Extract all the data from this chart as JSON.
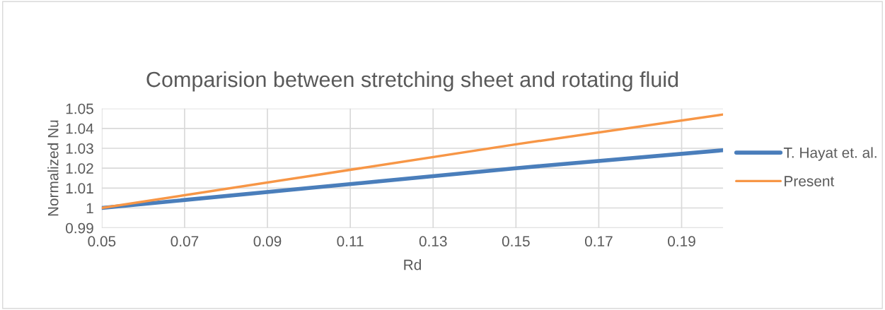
{
  "chart_data": {
    "type": "line",
    "title": "Comparision between stretching sheet and rotating fluid",
    "xlabel": "Rd",
    "ylabel": "Normalized Nu",
    "x": [
      0.05,
      0.1,
      0.15,
      0.2
    ],
    "series": [
      {
        "name": "T. Hayat et. al.",
        "color": "#4a7ebb",
        "values": [
          1.0,
          1.01,
          1.02,
          1.029
        ]
      },
      {
        "name": "Present",
        "color": "#f79646",
        "values": [
          1.0,
          1.016,
          1.032,
          1.047
        ]
      }
    ],
    "xlim": [
      0.05,
      0.2
    ],
    "xticks": [
      0.05,
      0.07,
      0.09,
      0.11,
      0.13,
      0.15,
      0.17,
      0.19
    ],
    "ylim": [
      0.99,
      1.05
    ],
    "yticks": [
      0.99,
      1,
      1.01,
      1.02,
      1.03,
      1.04,
      1.05
    ],
    "grid": true,
    "legend": "right",
    "marker": "none",
    "line_style": "solid"
  }
}
